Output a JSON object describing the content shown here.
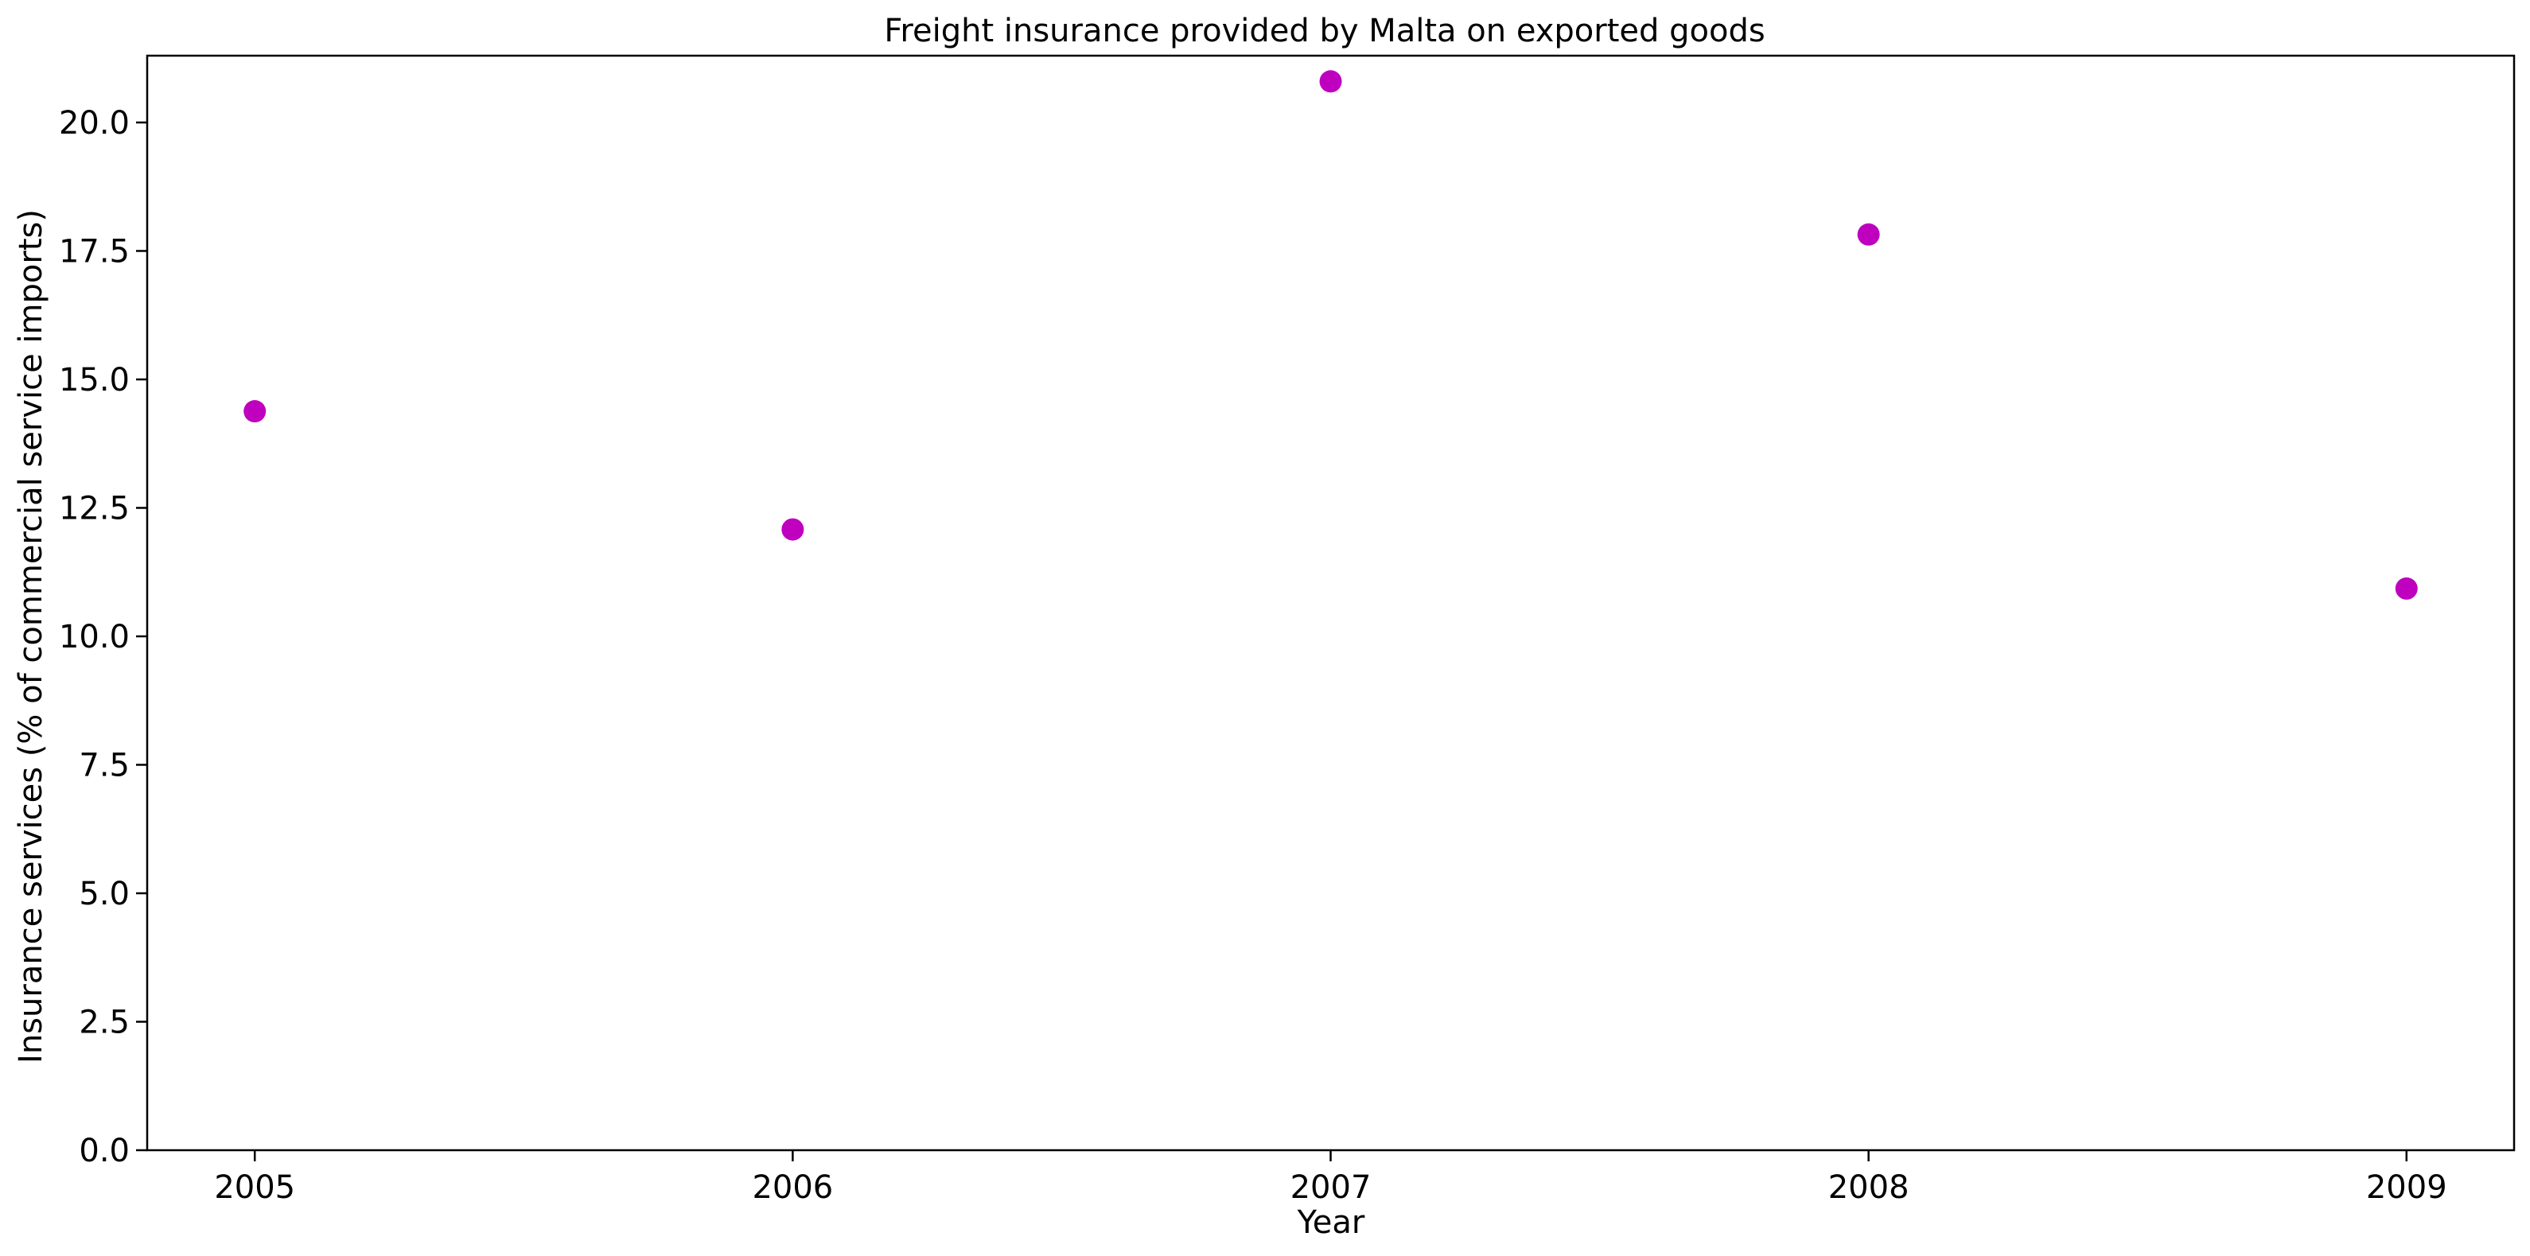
{
  "chart_data": {
    "type": "scatter",
    "title": "Freight insurance provided by Malta on exported goods",
    "xlabel": "Year",
    "ylabel": "Insurance services (% of commercial service imports)",
    "x": [
      "2005",
      "2006",
      "2007",
      "2008",
      "2009"
    ],
    "series": [
      {
        "values": [
          14.38,
          12.08,
          20.8,
          17.82,
          10.93
        ],
        "color": "#bf00bf"
      }
    ],
    "xlim": [
      2004.8,
      2009.2
    ],
    "ylim": [
      0,
      21.3
    ],
    "yticks": [
      "0.0",
      "2.5",
      "5.0",
      "7.5",
      "10.0",
      "12.5",
      "15.0",
      "17.5",
      "20.0"
    ],
    "grid": false,
    "legend": "none"
  }
}
